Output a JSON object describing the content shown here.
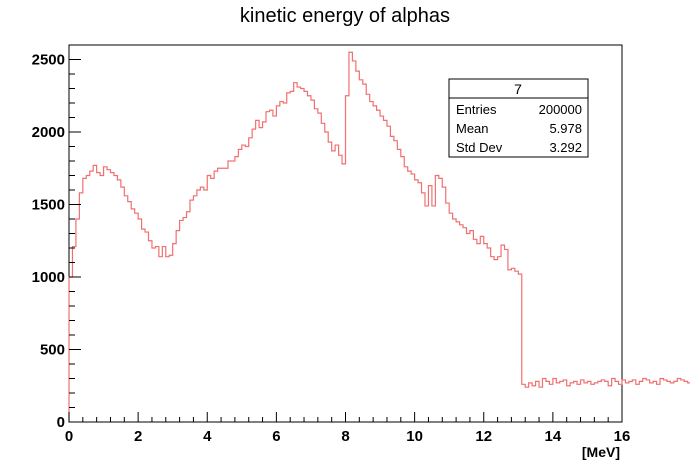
{
  "chart_data": {
    "type": "histogram",
    "title": "kinetic energy of alphas",
    "xlabel": "[MeV]",
    "ylabel": "",
    "xlim": [
      0,
      16
    ],
    "ylim": [
      0,
      2600
    ],
    "grid": false,
    "legend": "none",
    "line_color": "#f07070",
    "x_ticks": [
      0,
      2,
      4,
      6,
      8,
      10,
      12,
      14,
      16
    ],
    "y_ticks": [
      0,
      500,
      1000,
      1500,
      2000,
      2500
    ],
    "bin_width": 0.1,
    "x_start": 0,
    "values": [
      1000,
      1210,
      1400,
      1580,
      1680,
      1700,
      1730,
      1770,
      1720,
      1700,
      1760,
      1740,
      1720,
      1700,
      1670,
      1620,
      1560,
      1520,
      1470,
      1440,
      1400,
      1330,
      1310,
      1250,
      1200,
      1210,
      1140,
      1210,
      1140,
      1150,
      1230,
      1320,
      1390,
      1410,
      1450,
      1530,
      1560,
      1600,
      1620,
      1600,
      1700,
      1680,
      1730,
      1750,
      1750,
      1750,
      1800,
      1800,
      1830,
      1880,
      1910,
      1900,
      1960,
      2020,
      2080,
      2030,
      2070,
      2140,
      2150,
      2110,
      2180,
      2210,
      2200,
      2270,
      2280,
      2340,
      2310,
      2300,
      2280,
      2250,
      2220,
      2160,
      2130,
      2060,
      2000,
      1930,
      1870,
      1910,
      1840,
      1780,
      2250,
      2550,
      2490,
      2420,
      2360,
      2330,
      2260,
      2210,
      2180,
      2150,
      2110,
      2080,
      2040,
      1970,
      1940,
      1880,
      1830,
      1760,
      1730,
      1710,
      1670,
      1650,
      1580,
      1490,
      1630,
      1490,
      1700,
      1680,
      1620,
      1510,
      1440,
      1400,
      1380,
      1360,
      1340,
      1300,
      1320,
      1260,
      1230,
      1280,
      1230,
      1200,
      1140,
      1120,
      1140,
      1220,
      1190,
      1050,
      1060,
      1040,
      1020,
      260,
      240,
      270,
      250,
      280,
      240,
      300,
      280,
      260,
      300,
      270,
      280,
      290,
      250,
      270,
      280,
      260,
      290,
      270,
      280,
      260,
      270,
      280,
      290,
      280,
      250,
      300,
      280,
      260,
      290,
      270,
      280,
      290,
      260,
      280,
      300,
      290,
      270,
      280,
      260,
      300,
      290,
      280,
      270,
      280,
      300,
      290,
      280,
      270,
      290,
      280,
      270,
      280,
      300
    ]
  },
  "stats": {
    "title": "7",
    "rows": [
      {
        "label": "Entries",
        "value": "200000"
      },
      {
        "label": "Mean",
        "value": "5.978"
      },
      {
        "label": "Std Dev",
        "value": "3.292"
      }
    ]
  }
}
